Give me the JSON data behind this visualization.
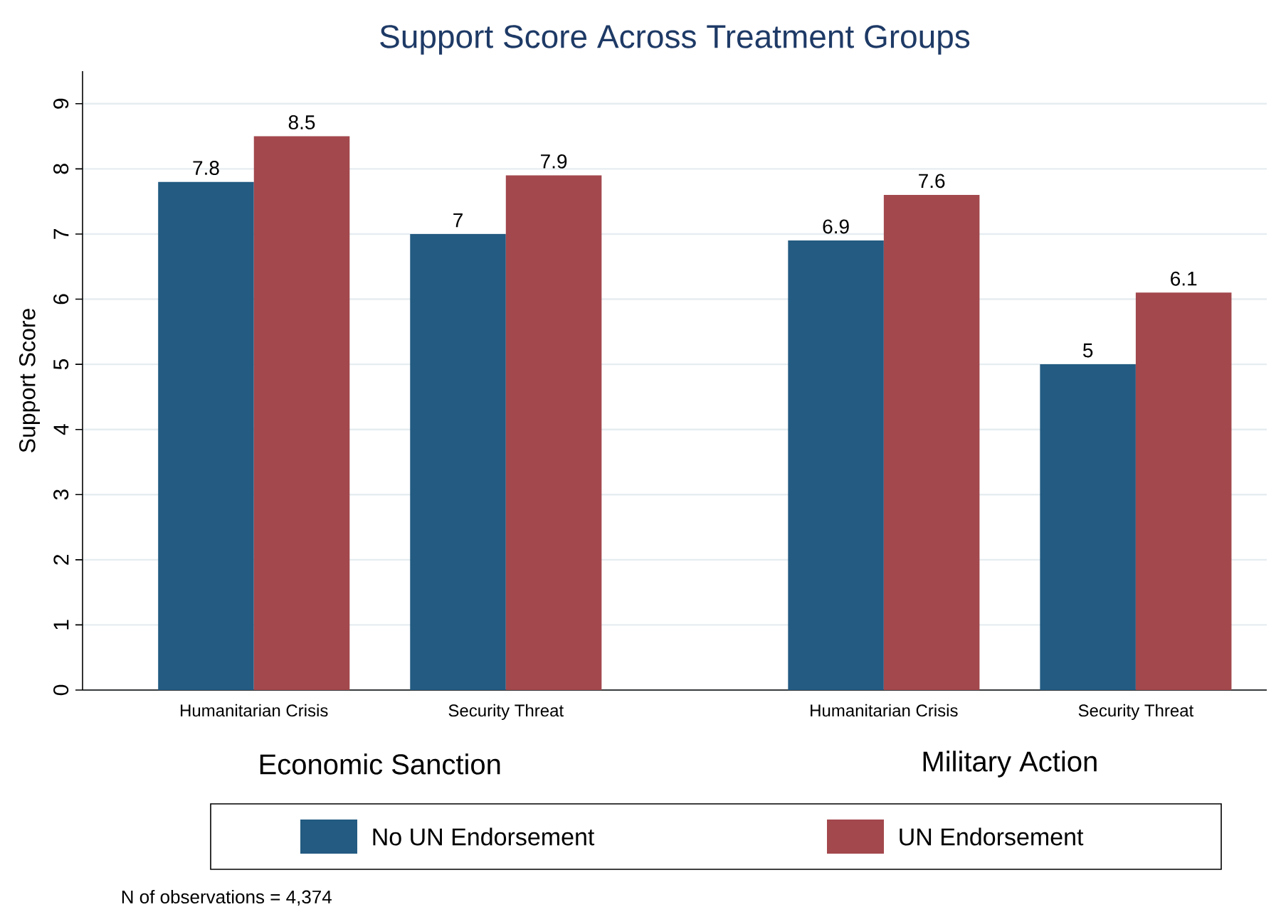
{
  "chart_data": {
    "type": "bar",
    "title": "Support Score Across Treatment Groups",
    "ylabel": "Support Score",
    "categories": [
      "Humanitarian Crisis",
      "Security Threat",
      "Humanitarian Crisis",
      "Security Threat"
    ],
    "series": [
      {
        "name": "No UN Endorsement",
        "color": "#235b82",
        "values": [
          7.8,
          7,
          6.9,
          5
        ],
        "value_labels": [
          "7.8",
          "7",
          "6.9",
          "5"
        ]
      },
      {
        "name": "UN Endorsement",
        "color": "#a3484d",
        "values": [
          8.5,
          7.9,
          7.6,
          6.1
        ],
        "value_labels": [
          "8.5",
          "7.9",
          "7.6",
          "6.1"
        ]
      }
    ],
    "ylim": [
      0,
      9.5
    ],
    "yticks": [
      0,
      1,
      2,
      3,
      4,
      5,
      6,
      7,
      8,
      9
    ],
    "grid": "y",
    "legend": "bottom",
    "annotations": [
      "Economic Sanction",
      "Military Action",
      "N of observations = 4,374"
    ]
  }
}
